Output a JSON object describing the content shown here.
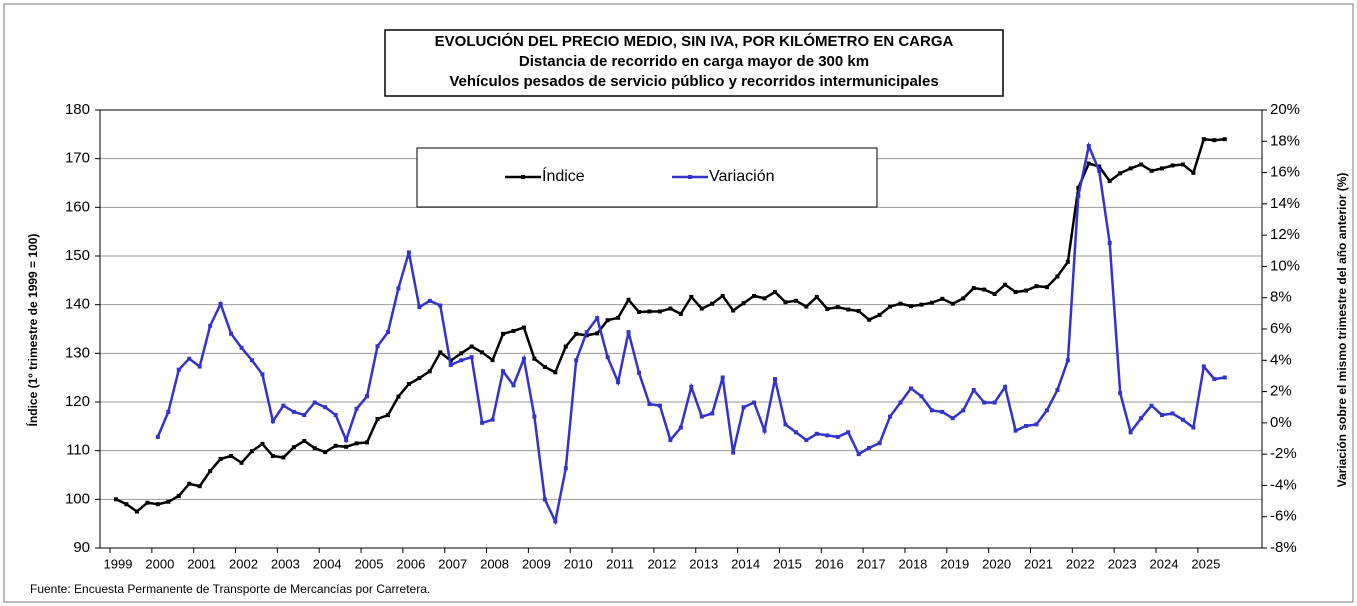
{
  "chart_data": {
    "type": "line",
    "title": "EVOLUCIÓN DEL PRECIO MEDIO, SIN IVA,  POR KILÓMETRO EN CARGA",
    "subtitles": [
      "Distancia de recorrido en carga mayor de 300 km",
      "Vehículos pesados de servicio público y recorridos intermunicipales"
    ],
    "ylabel": "Índice (1º trimestre de 1999 = 100)",
    "y2label": "Variación sobre el mismo trimestre del año anterior (%)",
    "source": "Fuente: Encuesta Permanente de Transporte de Mercancías por Carretera.",
    "categories": [
      "1999",
      null,
      null,
      null,
      "2000",
      null,
      null,
      null,
      "2001",
      null,
      null,
      null,
      "2002",
      null,
      null,
      null,
      "2003",
      null,
      null,
      null,
      "2004",
      null,
      null,
      null,
      "2005",
      null,
      null,
      null,
      "2006",
      null,
      null,
      null,
      "2007",
      null,
      null,
      null,
      "2008",
      null,
      null,
      null,
      "2009",
      null,
      null,
      null,
      "2010",
      null,
      null,
      null,
      "2011",
      null,
      null,
      null,
      "2012",
      null,
      null,
      null,
      "2013",
      null,
      null,
      null,
      "2014",
      null,
      null,
      null,
      "2015",
      null,
      null,
      null,
      "2016",
      null,
      null,
      null,
      "2017",
      null,
      null,
      null,
      "2018",
      null,
      null,
      null,
      "2019",
      null,
      null,
      null,
      "2020",
      null,
      null,
      null,
      "2021",
      null,
      null,
      null,
      "2022",
      null,
      null,
      null,
      "2023",
      null,
      null,
      null,
      "2024",
      null,
      null,
      null,
      "2025",
      null,
      null
    ],
    "series": [
      {
        "name": "Índice",
        "color": "#000000",
        "axis": "y",
        "values": [
          100,
          99,
          97.5,
          99.3,
          99,
          99.5,
          100.7,
          103.2,
          102.7,
          105.8,
          108.3,
          108.9,
          107.5,
          109.9,
          111.4,
          108.9,
          108.6,
          110.7,
          112,
          110.5,
          109.7,
          111,
          110.8,
          111.5,
          111.7,
          116.5,
          117.3,
          121.1,
          123.7,
          124.9,
          126.3,
          130.2,
          128.5,
          130,
          131.4,
          130.2,
          128.6,
          134,
          134.6,
          135.3,
          128.9,
          127.2,
          126.1,
          131.4,
          134,
          133.7,
          134.1,
          136.8,
          137.3,
          141,
          138.5,
          138.6,
          138.6,
          139.2,
          138.1,
          141.6,
          139.2,
          140.2,
          141.8,
          138.8,
          140.3,
          141.8,
          141.3,
          142.6,
          140.5,
          140.8,
          139.6,
          141.6,
          139.1,
          139.5,
          139,
          138.7,
          136.9,
          137.9,
          139.6,
          140.2,
          139.7,
          140,
          140.4,
          141.2,
          140.2,
          141.3,
          143.4,
          143.1,
          142.2,
          144.1,
          142.6,
          142.9,
          143.8,
          143.6,
          145.8,
          148.8,
          164,
          169,
          168.4,
          165.4,
          167,
          168,
          168.8,
          167.5,
          168,
          168.6,
          168.8,
          167.1,
          174,
          173.8,
          174
        ]
      },
      {
        "name": "Variación",
        "color": "#3333cc",
        "axis": "y2",
        "values": [
          null,
          null,
          null,
          null,
          -0.9,
          0.7,
          3.4,
          4.1,
          3.6,
          6.2,
          7.6,
          5.7,
          4.8,
          4.0,
          3.1,
          0.1,
          1.1,
          0.7,
          0.5,
          1.3,
          1.0,
          0.5,
          -1.1,
          0.9,
          1.7,
          4.9,
          5.8,
          8.6,
          10.9,
          7.4,
          7.8,
          7.5,
          3.7,
          4.0,
          4.2,
          0.0,
          0.2,
          3.3,
          2.4,
          4.1,
          0.4,
          -4.9,
          -6.3,
          -2.9,
          4.0,
          5.8,
          6.7,
          4.2,
          2.6,
          5.8,
          3.2,
          1.2,
          1.1,
          -1.1,
          -0.3,
          2.3,
          0.4,
          0.6,
          2.9,
          -1.9,
          1.0,
          1.3,
          -0.5,
          2.8,
          -0.1,
          -0.6,
          -1.1,
          -0.7,
          -0.8,
          -0.9,
          -0.6,
          -2.0,
          -1.6,
          -1.3,
          0.4,
          1.3,
          2.2,
          1.7,
          0.8,
          0.7,
          0.3,
          0.8,
          2.1,
          1.3,
          1.3,
          2.3,
          -0.5,
          -0.2,
          -0.1,
          0.8,
          2.1,
          4.0,
          14.5,
          17.7,
          16.1,
          11.5,
          1.9,
          -0.6,
          0.3,
          1.1,
          0.5,
          0.6,
          0.2,
          -0.3,
          3.6,
          2.8,
          2.9
        ]
      }
    ],
    "ylim": [
      90,
      180
    ],
    "yticks": [
      90,
      100,
      110,
      120,
      130,
      140,
      150,
      160,
      170,
      180
    ],
    "y2lim": [
      -8,
      20
    ],
    "y2ticks": [
      {
        "value": -8,
        "label": "-8%"
      },
      {
        "value": -6,
        "label": "-6%"
      },
      {
        "value": -4,
        "label": "-4%"
      },
      {
        "value": -2,
        "label": "-2%"
      },
      {
        "value": 0,
        "label": "0%"
      },
      {
        "value": 2,
        "label": "2%"
      },
      {
        "value": 4,
        "label": "4%"
      },
      {
        "value": 6,
        "label": "6%"
      },
      {
        "value": 8,
        "label": "8%"
      },
      {
        "value": 10,
        "label": "10%"
      },
      {
        "value": 12,
        "label": "12%"
      },
      {
        "value": 14,
        "label": "14%"
      },
      {
        "value": 16,
        "label": "16%"
      },
      {
        "value": 18,
        "label": "18%"
      },
      {
        "value": 20,
        "label": "20%"
      }
    ],
    "grid": true,
    "legend": "top"
  }
}
